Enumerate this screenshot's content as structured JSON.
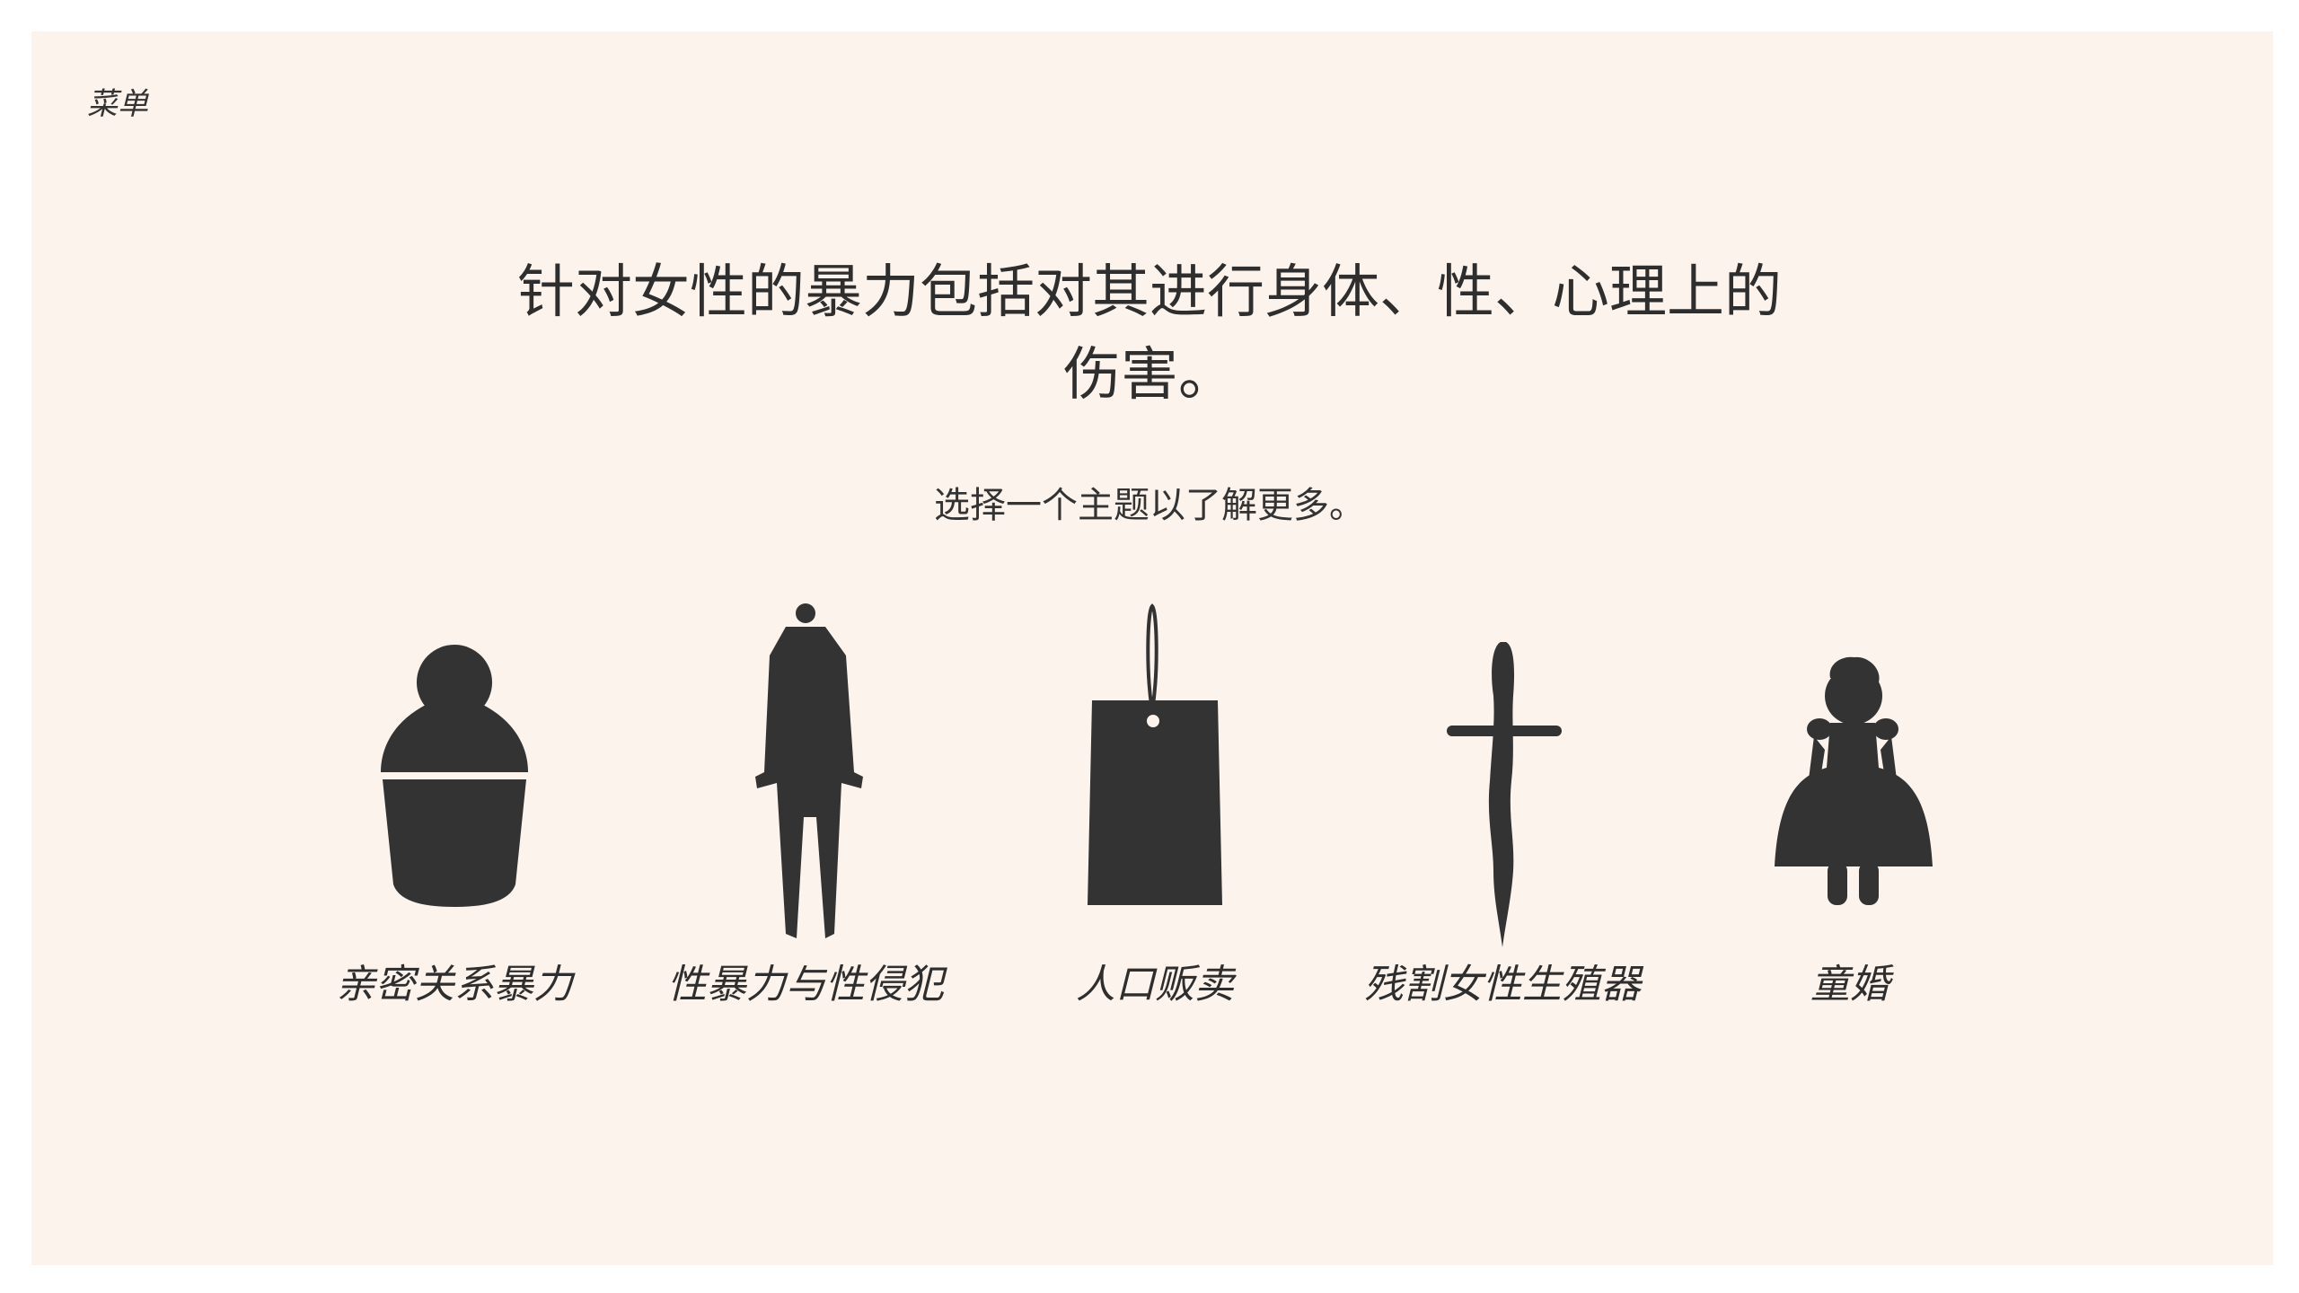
{
  "menu": {
    "label": "菜单"
  },
  "intro": {
    "headline": "针对女性的暴力包括对其进行身体、性、心理上的伤害。",
    "subhead": "选择一个主题以了解更多。"
  },
  "topics": [
    {
      "label": "亲密关系暴力",
      "icon": "vase-figure-icon"
    },
    {
      "label": "性暴力与性侵犯",
      "icon": "standing-man-icon"
    },
    {
      "label": "人口贩卖",
      "icon": "price-tag-icon"
    },
    {
      "label": "残割女性生殖器",
      "icon": "blade-icon"
    },
    {
      "label": "童婚",
      "icon": "girl-figure-icon"
    }
  ],
  "colors": {
    "background": "#fcf3ec",
    "foreground": "#333333"
  }
}
